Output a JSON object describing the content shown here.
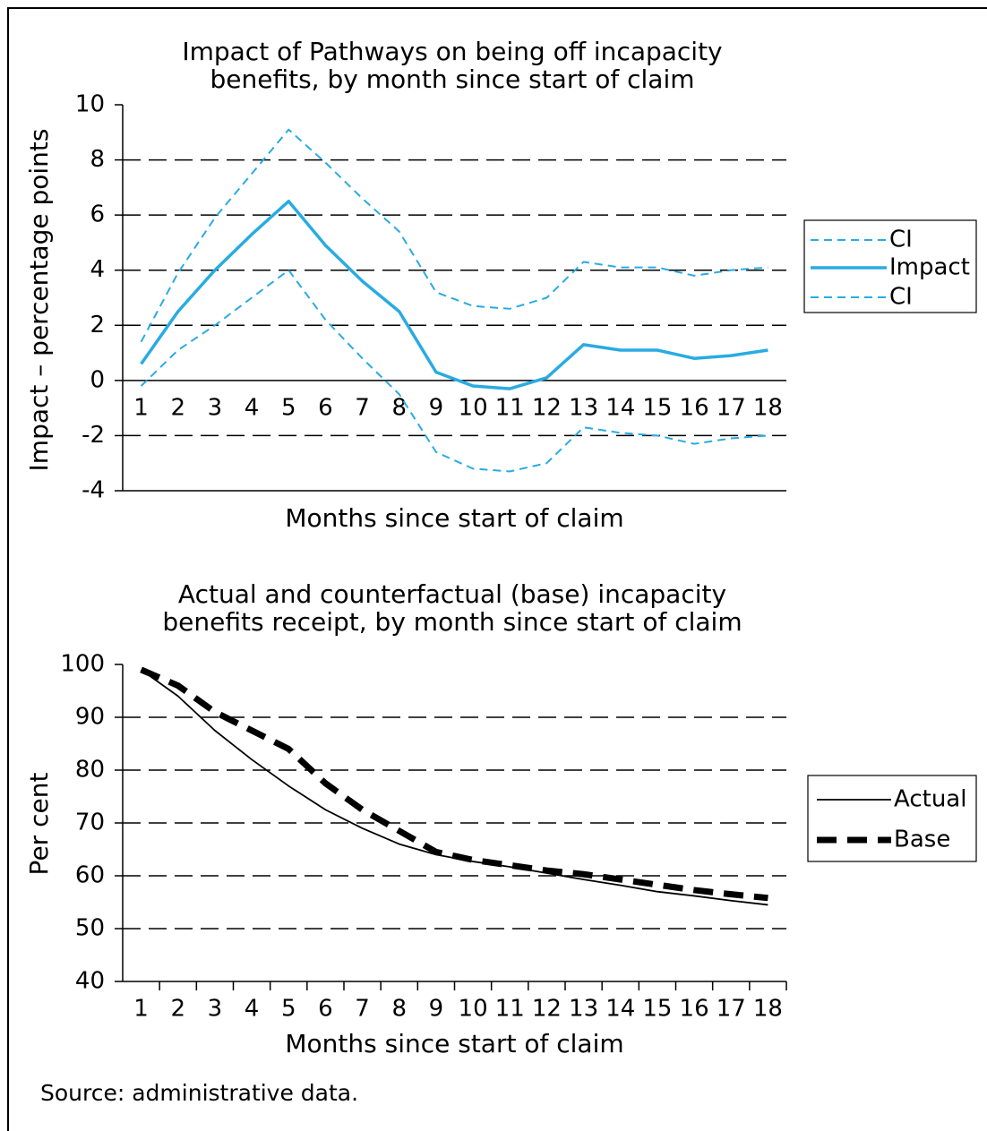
{
  "chart_data": [
    {
      "type": "line",
      "title": "Impact of Pathways on being off incapacity benefits, by month since start of claim",
      "y_label": "Impact – percentage points",
      "x_label": "Months since start of claim",
      "categories": [
        "1",
        "2",
        "3",
        "4",
        "5",
        "6",
        "7",
        "8",
        "9",
        "10",
        "11",
        "12",
        "13",
        "14",
        "15",
        "16",
        "17",
        "18"
      ],
      "series": [
        {
          "name": "CI",
          "color": "#29abe2",
          "line_style": "dashed",
          "values": [
            1.4,
            3.9,
            5.9,
            7.5,
            9.1,
            7.9,
            6.6,
            5.4,
            3.2,
            2.7,
            2.6,
            3.0,
            4.3,
            4.1,
            4.1,
            3.8,
            4.0,
            4.1
          ]
        },
        {
          "name": "Impact",
          "color": "#29abe2",
          "line_style": "solid",
          "values": [
            0.6,
            2.5,
            4.0,
            5.3,
            6.5,
            4.9,
            3.6,
            2.5,
            0.3,
            -0.2,
            -0.3,
            0.1,
            1.3,
            1.1,
            1.1,
            0.8,
            0.9,
            1.1
          ]
        },
        {
          "name": "CI",
          "color": "#29abe2",
          "line_style": "dashed",
          "values": [
            -0.2,
            1.1,
            2.0,
            3.0,
            4.0,
            2.2,
            0.8,
            -0.5,
            -2.6,
            -3.2,
            -3.3,
            -3.0,
            -1.7,
            -1.9,
            -2.0,
            -2.3,
            -2.1,
            -2.0
          ]
        }
      ],
      "ylim": [
        -4,
        10
      ],
      "yticks": [
        -4,
        -2,
        0,
        2,
        4,
        6,
        8,
        10
      ],
      "grid": true,
      "legend": "right"
    },
    {
      "type": "line",
      "title": "Actual and counterfactual (base) incapacity benefits receipt, by month since start of claim",
      "y_label": "Per cent",
      "x_label": "Months since start of claim",
      "categories": [
        "1",
        "2",
        "3",
        "4",
        "5",
        "6",
        "7",
        "8",
        "9",
        "10",
        "11",
        "12",
        "13",
        "14",
        "15",
        "16",
        "17",
        "18"
      ],
      "series": [
        {
          "name": "Actual",
          "color": "#000000",
          "line_style": "thin",
          "values": [
            99,
            94,
            87.5,
            82,
            77,
            72.5,
            69,
            66,
            64,
            62.7,
            61.7,
            60.5,
            59.3,
            58.2,
            57,
            56.2,
            55.3,
            54.5
          ]
        },
        {
          "name": "Base",
          "color": "#000000",
          "line_style": "bold-dashed",
          "values": [
            99,
            96,
            91,
            87.5,
            84,
            77.5,
            72.5,
            68.5,
            64.5,
            63,
            62,
            61,
            60.3,
            59.3,
            58.3,
            57.3,
            56.5,
            55.8
          ]
        }
      ],
      "ylim": [
        40,
        100
      ],
      "yticks": [
        40,
        50,
        60,
        70,
        80,
        90,
        100
      ],
      "grid": true,
      "legend": "right"
    }
  ],
  "source": "Source: administrative data."
}
